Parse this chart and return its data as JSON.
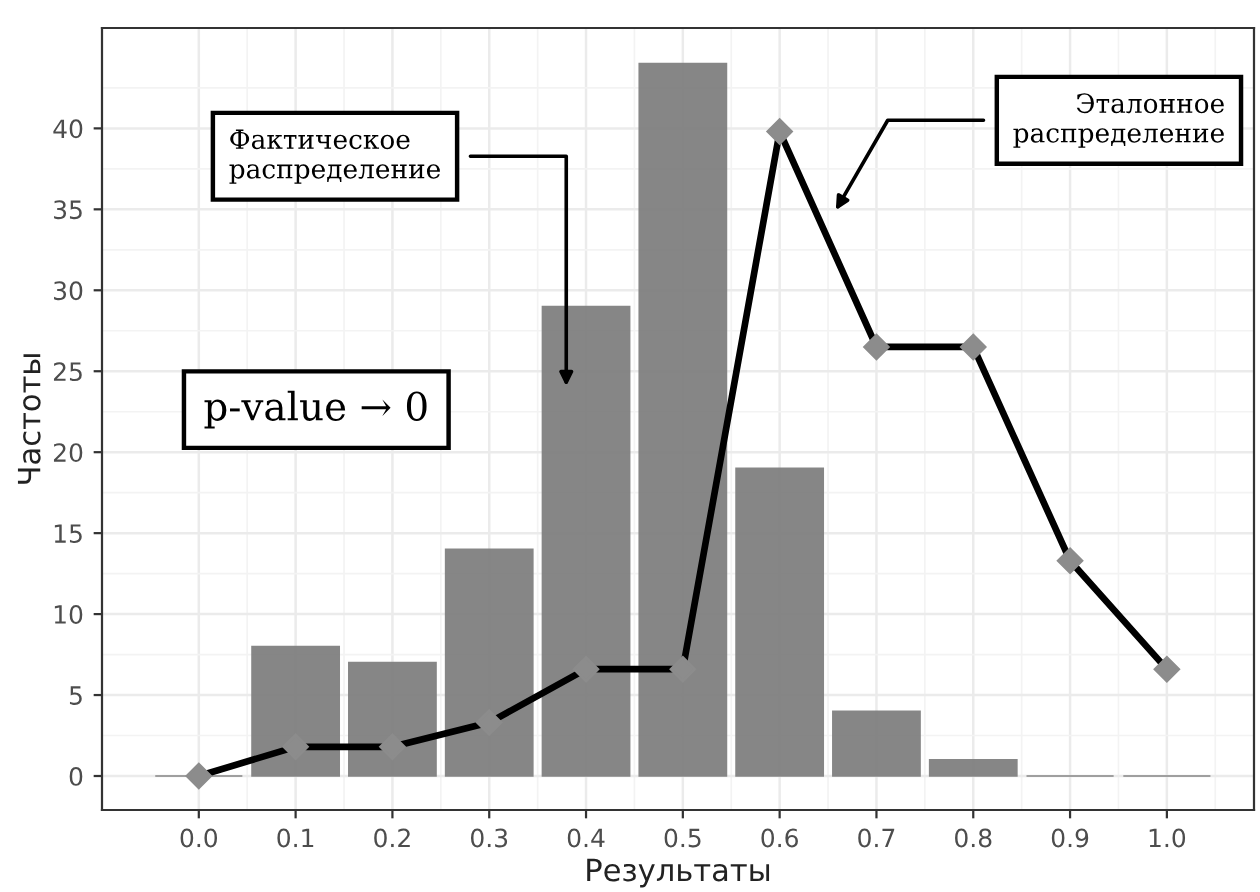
{
  "chart_data": {
    "type": "bar",
    "xlabel": "Результаты",
    "ylabel": "Частоты",
    "x": [
      0.0,
      0.1,
      0.2,
      0.3,
      0.4,
      0.5,
      0.6,
      0.7,
      0.8,
      0.9,
      1.0
    ],
    "series": [
      {
        "color": "#808080",
        "values": [
          0,
          8,
          7,
          14,
          29,
          44,
          19,
          4,
          1,
          0,
          0
        ]
      },
      {
        "type": "line",
        "color": "#000000",
        "marker": "diamond",
        "line_style": "solid",
        "values": [
          0,
          1.8,
          1.8,
          3.3,
          6.6,
          6.6,
          39.8,
          26.5,
          26.5,
          13.3,
          6.6
        ]
      }
    ],
    "xlim": [
      -0.1,
      1.09
    ],
    "ylim": [
      -2.1,
      46.2
    ],
    "xticks": [
      {
        "value": 0,
        "label": "0.0"
      },
      0.1,
      0.2,
      0.3,
      0.4,
      0.5,
      0.6,
      0.7,
      0.8,
      0.9,
      {
        "value": 1,
        "label": "1.0"
      }
    ],
    "yticks": [
      0,
      5,
      10,
      15,
      20,
      25,
      30,
      35,
      40
    ],
    "grid": true,
    "annotations": [
      "Фактическое\nраспределение",
      "Эталонное\nраспределение",
      "p-value → 0"
    ]
  }
}
